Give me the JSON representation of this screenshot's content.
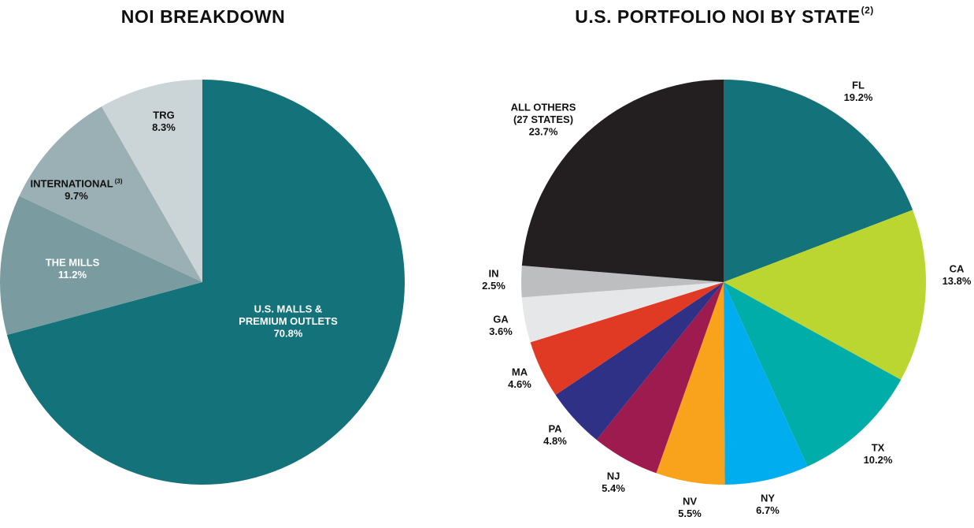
{
  "chart_data": [
    {
      "type": "pie",
      "title": "NOI BREAKDOWN",
      "slices": [
        {
          "label": "U.S. MALLS & PREMIUM OUTLETS",
          "label_lines": [
            "U.S. MALLS &",
            "PREMIUM OUTLETS"
          ],
          "value": 70.8,
          "value_label": "70.8%",
          "color": "#13727a",
          "text_color": "#ffffff"
        },
        {
          "label": "THE MILLS",
          "label_lines": [
            "THE MILLS"
          ],
          "value": 11.2,
          "value_label": "11.2%",
          "color": "#7a9ca1",
          "text_color": "#ffffff"
        },
        {
          "label": "INTERNATIONAL",
          "label_lines": [
            "INTERNATIONAL"
          ],
          "footnote": "(3)",
          "value": 9.7,
          "value_label": "9.7%",
          "color": "#9ab0b4",
          "text_color": "#111111"
        },
        {
          "label": "TRG",
          "label_lines": [
            "TRG"
          ],
          "value": 8.3,
          "value_label": "8.3%",
          "color": "#cbd4d7",
          "text_color": "#111111"
        }
      ]
    },
    {
      "type": "pie",
      "title": "U.S. PORTFOLIO NOI BY STATE",
      "title_footnote": "(2)",
      "slices": [
        {
          "label": "FL",
          "label_lines": [
            "FL"
          ],
          "value": 19.2,
          "value_label": "19.2%",
          "color": "#13727a"
        },
        {
          "label": "CA",
          "label_lines": [
            "CA"
          ],
          "value": 13.8,
          "value_label": "13.8%",
          "color": "#bcd631"
        },
        {
          "label": "TX",
          "label_lines": [
            "TX"
          ],
          "value": 10.2,
          "value_label": "10.2%",
          "color": "#00ada8"
        },
        {
          "label": "NY",
          "label_lines": [
            "NY"
          ],
          "value": 6.7,
          "value_label": "6.7%",
          "color": "#00aeef"
        },
        {
          "label": "NV",
          "label_lines": [
            "NV"
          ],
          "value": 5.5,
          "value_label": "5.5%",
          "color": "#f9a21b"
        },
        {
          "label": "NJ",
          "label_lines": [
            "NJ"
          ],
          "value": 5.4,
          "value_label": "5.4%",
          "color": "#9e1b4f"
        },
        {
          "label": "PA",
          "label_lines": [
            "PA"
          ],
          "value": 4.8,
          "value_label": "4.8%",
          "color": "#2e3185"
        },
        {
          "label": "MA",
          "label_lines": [
            "MA"
          ],
          "value": 4.6,
          "value_label": "4.6%",
          "color": "#e03a24"
        },
        {
          "label": "GA",
          "label_lines": [
            "GA"
          ],
          "value": 3.6,
          "value_label": "3.6%",
          "color": "#e6e7e8"
        },
        {
          "label": "IN",
          "label_lines": [
            "IN"
          ],
          "value": 2.5,
          "value_label": "2.5%",
          "color": "#bdbec0"
        },
        {
          "label": "ALL OTHERS (27 STATES)",
          "label_lines": [
            "ALL OTHERS",
            "(27 STATES)"
          ],
          "value": 23.7,
          "value_label": "23.7%",
          "color": "#231f20"
        }
      ]
    }
  ]
}
